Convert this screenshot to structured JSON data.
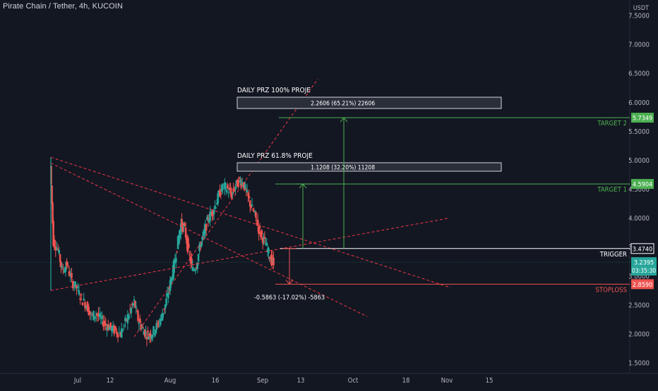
{
  "header": {
    "symbol_title": "Pirate Chain / Tether, 4h, KUCOIN",
    "currency": "USDT"
  },
  "colors": {
    "background": "#131722",
    "axis_text": "#b2b5be",
    "up": "#26a69a",
    "down": "#ef5350",
    "target_green": "#4caf50",
    "trendline_red": "#f23645",
    "white": "#ffffff",
    "box_fill": "#2a2e39"
  },
  "chart_data": {
    "type": "candlestick",
    "title": "Pirate Chain / Tether, 4h, KUCOIN",
    "ylabel": "USDT",
    "ylim": [
      1.25,
      7.55
    ],
    "y_ticks": [
      "7.5000",
      "7.0000",
      "6.5000",
      "6.0000",
      "5.5000",
      "5.0000",
      "4.5000",
      "4.0000",
      "3.5000",
      "3.0000",
      "2.5000",
      "2.0000",
      "1.5000"
    ],
    "x_ticks": [
      "Jul",
      "12",
      "Aug",
      "16",
      "Sep",
      "13",
      "Oct",
      "18",
      "Nov",
      "15"
    ],
    "price_levels": [
      {
        "label": "TARGET 2",
        "price": 5.7349,
        "badge": "5.7349",
        "color": "#4caf50"
      },
      {
        "label": "TARGET 1",
        "price": 4.5904,
        "badge": "4.5904",
        "color": "#4caf50"
      },
      {
        "label": "TRIGGER",
        "price": 3.474,
        "badge": "3.4740",
        "color": "#ffffff"
      },
      {
        "label": "STOPLOSS",
        "price": 2.859,
        "badge": "2.8590",
        "color": "#ef5350"
      }
    ],
    "current_price": {
      "value": "3.2395",
      "countdown": "03:35:30"
    },
    "projection_boxes": [
      {
        "heading": "DAILY PRZ 100% PROJE",
        "text": "2.2606 (65.21%) 22606"
      },
      {
        "heading": "DAILY PRZ 61.8% PROJE",
        "text": "1.1208 (32.20%) 11208"
      }
    ],
    "measure_label": "-0.5863 (-17.02%) -5863",
    "price_path": [
      [
        0,
        4.9
      ],
      [
        0.3,
        3.6
      ],
      [
        0.8,
        3.45
      ],
      [
        1.2,
        3.1
      ],
      [
        1.7,
        3.2
      ],
      [
        2.2,
        2.9
      ],
      [
        2.7,
        2.8
      ],
      [
        3.2,
        2.6
      ],
      [
        3.7,
        2.5
      ],
      [
        4.2,
        2.3
      ],
      [
        4.7,
        2.35
      ],
      [
        5.2,
        2.25
      ],
      [
        5.7,
        2.15
      ],
      [
        6.2,
        2.1
      ],
      [
        6.7,
        2.05
      ],
      [
        7.2,
        2.0
      ],
      [
        7.7,
        2.2
      ],
      [
        8.2,
        2.4
      ],
      [
        8.6,
        2.55
      ],
      [
        9.0,
        2.25
      ],
      [
        9.4,
        2.1
      ],
      [
        9.8,
        2.0
      ],
      [
        10.2,
        1.98
      ],
      [
        10.6,
        2.05
      ],
      [
        11.0,
        2.15
      ],
      [
        11.4,
        2.3
      ],
      [
        11.8,
        2.5
      ],
      [
        12.2,
        2.8
      ],
      [
        12.6,
        3.1
      ],
      [
        13.0,
        3.5
      ],
      [
        13.4,
        3.9
      ],
      [
        13.8,
        3.8
      ],
      [
        14.2,
        3.4
      ],
      [
        14.6,
        3.1
      ],
      [
        15.0,
        3.2
      ],
      [
        15.4,
        3.55
      ],
      [
        15.8,
        3.75
      ],
      [
        16.2,
        4.0
      ],
      [
        16.6,
        4.1
      ],
      [
        17.0,
        4.25
      ],
      [
        17.4,
        4.45
      ],
      [
        17.8,
        4.55
      ],
      [
        18.2,
        4.5
      ],
      [
        18.6,
        4.4
      ],
      [
        19.0,
        4.55
      ],
      [
        19.4,
        4.65
      ],
      [
        19.8,
        4.6
      ],
      [
        20.2,
        4.4
      ],
      [
        20.6,
        4.2
      ],
      [
        21.0,
        4.05
      ],
      [
        21.4,
        3.8
      ],
      [
        21.8,
        3.65
      ],
      [
        22.2,
        3.5
      ],
      [
        22.6,
        3.3
      ],
      [
        22.9,
        3.2
      ]
    ]
  }
}
